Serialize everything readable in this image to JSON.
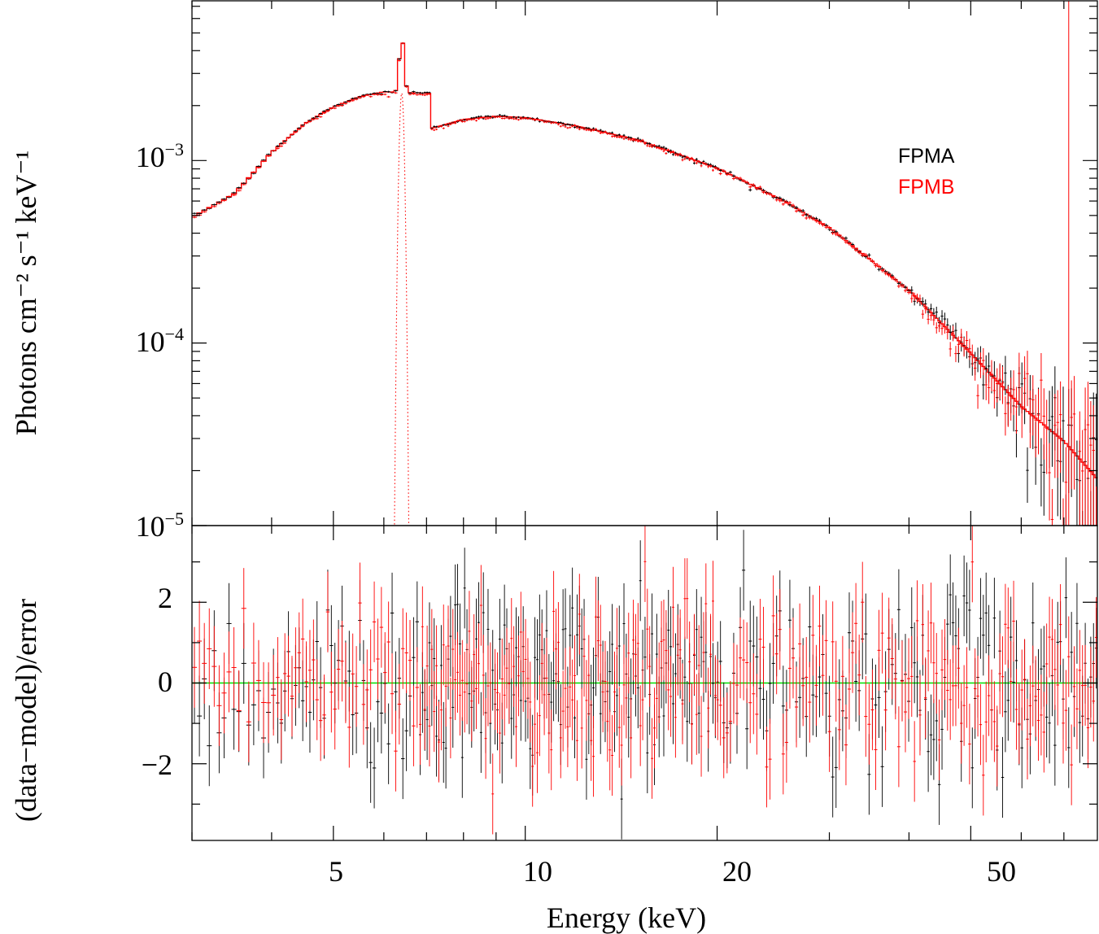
{
  "chart_data": [
    {
      "panel": "spectrum",
      "type": "scatter",
      "subtype": "unfolded X-ray spectrum with error bars and step model",
      "x_scale": "log",
      "y_scale": "log",
      "xlim": [
        3.0,
        79.0
      ],
      "ylim": [
        1e-05,
        0.0075
      ],
      "ylabel": "Photons cm⁻² s⁻¹ keV⁻¹",
      "y_ticks": [
        {
          "value": 0.001,
          "base": "10",
          "exp": "−3"
        },
        {
          "value": 0.0001,
          "base": "10",
          "exp": "−4"
        },
        {
          "value": 1e-05,
          "base": "10",
          "exp": "−5"
        }
      ],
      "legend": {
        "position": "top-right",
        "entries": [
          "FPMA",
          "FPMB"
        ]
      },
      "continuum_model_keypoints": {
        "energy_keV": [
          3.0,
          3.5,
          4.0,
          4.5,
          5.0,
          5.5,
          6.0,
          6.4,
          7.1,
          7.12,
          8.0,
          9.0,
          10.0,
          12.0,
          15.0,
          20.0,
          25.0,
          30.0,
          40.0,
          50.0,
          60.0,
          70.0,
          79.0
        ],
        "flux": [
          0.00049,
          0.00066,
          0.00111,
          0.00159,
          0.00197,
          0.00224,
          0.00238,
          0.00236,
          0.00233,
          0.0015,
          0.00168,
          0.00175,
          0.00172,
          0.00155,
          0.0013,
          0.00091,
          0.00062,
          0.00043,
          0.000195,
          8.8e-05,
          4.5e-05,
          2.9e-05,
          1.8e-05
        ]
      },
      "iron_line": {
        "center_keV": 6.4,
        "sigma_keV": 0.05,
        "peak_flux": 0.0047
      },
      "series": [
        {
          "name": "FPMA",
          "color": "#000000",
          "offset": 1.0
        },
        {
          "name": "FPMB",
          "color": "#ff0000",
          "offset": 0.985
        }
      ],
      "model_color": "#ff0000"
    },
    {
      "panel": "residuals",
      "type": "scatter",
      "subtype": "residuals with error bars",
      "x_scale": "log",
      "xlim": [
        3.0,
        79.0
      ],
      "ylim": [
        -3.9,
        3.9
      ],
      "xlabel": "Energy (keV)",
      "ylabel": "(data−model)/error",
      "x_ticks": [
        {
          "value": 5,
          "label": "5"
        },
        {
          "value": 10,
          "label": "10"
        },
        {
          "value": 20,
          "label": "20"
        },
        {
          "value": 50,
          "label": "50"
        }
      ],
      "y_ticks": [
        {
          "value": 2,
          "label": "2"
        },
        {
          "value": 0,
          "label": "0"
        },
        {
          "value": -2,
          "label": "−2"
        }
      ],
      "zero_line": {
        "y": 0,
        "color": "#00e000"
      },
      "series": [
        {
          "name": "FPMA",
          "color": "#000000",
          "n_points": 380,
          "scatter_sigma": 1.0
        },
        {
          "name": "FPMB",
          "color": "#ff0000",
          "n_points": 380,
          "scatter_sigma": 1.0
        }
      ]
    }
  ]
}
